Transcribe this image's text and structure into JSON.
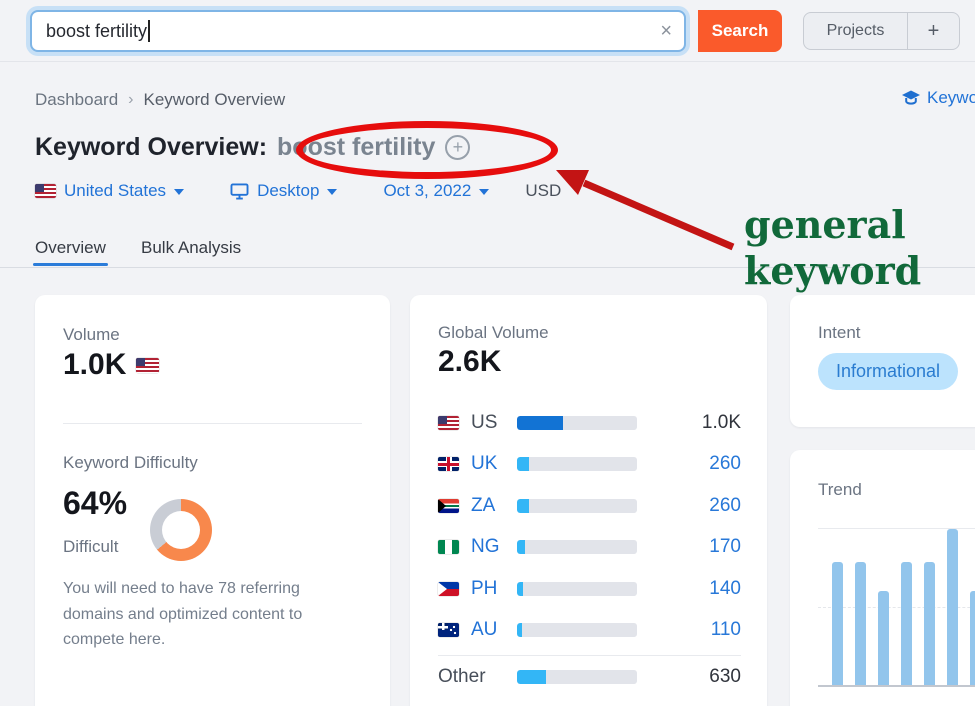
{
  "topbar": {
    "search_value": "boost fertility",
    "clear_label": "×",
    "search_button": "Search",
    "projects_button": "Projects",
    "new_project_button": "+"
  },
  "breadcrumb": {
    "home": "Dashboard",
    "separator": "›",
    "current": "Keyword Overview"
  },
  "quick_link": {
    "label": "Keyword"
  },
  "title": {
    "prefix": "Keyword Overview:",
    "keyword": "boost fertility",
    "add_icon": "+"
  },
  "filters": {
    "country": "United States",
    "device": "Desktop",
    "date": "Oct 3, 2022",
    "currency": "USD"
  },
  "tabs": {
    "overview": "Overview",
    "bulk": "Bulk Analysis"
  },
  "annotation": {
    "line1": "general",
    "line2": "keyword",
    "text_color": "#11693A",
    "shape_color": "#E60D0D"
  },
  "volume_card": {
    "label": "Volume",
    "value": "1.0K",
    "kd_label": "Keyword Difficulty",
    "kd_value": "64%",
    "kd_tag": "Difficult",
    "kd_note": "You will need to have 78 referring domains and optimized content to compete here."
  },
  "global_volume_card": {
    "label": "Global Volume",
    "value": "2.6K",
    "rows": [
      {
        "country": "US",
        "value": "1.0K"
      },
      {
        "country": "UK",
        "value": "260"
      },
      {
        "country": "ZA",
        "value": "260"
      },
      {
        "country": "NG",
        "value": "170"
      },
      {
        "country": "PH",
        "value": "140"
      },
      {
        "country": "AU",
        "value": "110"
      }
    ],
    "other_row": {
      "label": "Other",
      "value": "630"
    }
  },
  "intent_card": {
    "label": "Intent",
    "badge": "Informational"
  },
  "trend_card": {
    "label": "Trend"
  },
  "chart_data": [
    {
      "type": "donut",
      "title": "Keyword Difficulty",
      "percent": 64,
      "value_text": "64%",
      "label": "Difficult",
      "fill": "#F8884C",
      "track": "#C9CDD5"
    },
    {
      "type": "bar",
      "title": "Global Volume by country",
      "total": "2.6K",
      "categories": [
        "US",
        "UK",
        "ZA",
        "NG",
        "PH",
        "AU",
        "Other"
      ],
      "values": [
        1000,
        260,
        260,
        170,
        140,
        110,
        630
      ],
      "shares": [
        38.5,
        10,
        10,
        6.5,
        5.4,
        4.2,
        24.2
      ],
      "bar_color_us": "#1273D4",
      "bar_color_default": "#33B6F6"
    },
    {
      "type": "bar",
      "title": "Trend",
      "values_percent": [
        79,
        79,
        60,
        79,
        79,
        100,
        60
      ],
      "ylim": [
        0,
        100
      ],
      "color": "#92C5EC",
      "legend": "none"
    }
  ]
}
